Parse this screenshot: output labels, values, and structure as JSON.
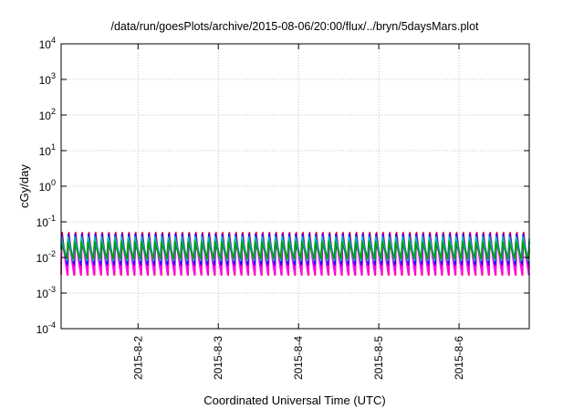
{
  "chart_data": {
    "type": "line",
    "title": "/data/run/goesPlots/archive/2015-08-06/20:00/flux/../bryn/5daysMars.plot",
    "xlabel": "Coordinated Universal Time (UTC)",
    "ylabel": "cGy/day",
    "y_scale": "log",
    "ylim": [
      0.0001,
      10000
    ],
    "y_ticks": [
      {
        "value": 0.0001,
        "base": "10",
        "exp": "-4"
      },
      {
        "value": 0.001,
        "base": "10",
        "exp": "-3"
      },
      {
        "value": 0.01,
        "base": "10",
        "exp": "-2"
      },
      {
        "value": 0.1,
        "base": "10",
        "exp": "-1"
      },
      {
        "value": 1,
        "base": "10",
        "exp": "0"
      },
      {
        "value": 10,
        "base": "10",
        "exp": "1"
      },
      {
        "value": 100,
        "base": "10",
        "exp": "2"
      },
      {
        "value": 1000,
        "base": "10",
        "exp": "3"
      },
      {
        "value": 10000,
        "base": "10",
        "exp": "4"
      }
    ],
    "xlim": [
      "2015-08-01 01:00",
      "2015-08-06 21:00"
    ],
    "x_ticks": [
      "2015-8-2",
      "2015-8-3",
      "2015-8-4",
      "2015-8-5",
      "2015-8-6"
    ],
    "grid": true,
    "oscillation_period_hours": 2,
    "series": [
      {
        "color": "#ff0000",
        "peak": 0.065,
        "trough": 0.0032
      },
      {
        "color": "#ff00ff",
        "peak": 0.055,
        "trough": 0.0028
      },
      {
        "color": "#0000ff",
        "peak": 0.05,
        "trough": 0.006
      },
      {
        "color": "#1a7fd8",
        "peak": 0.045,
        "trough": 0.008
      },
      {
        "color": "#00c8c8",
        "peak": 0.035,
        "trough": 0.0075
      },
      {
        "color": "#00a000",
        "peak": 0.03,
        "trough": 0.009
      }
    ]
  }
}
